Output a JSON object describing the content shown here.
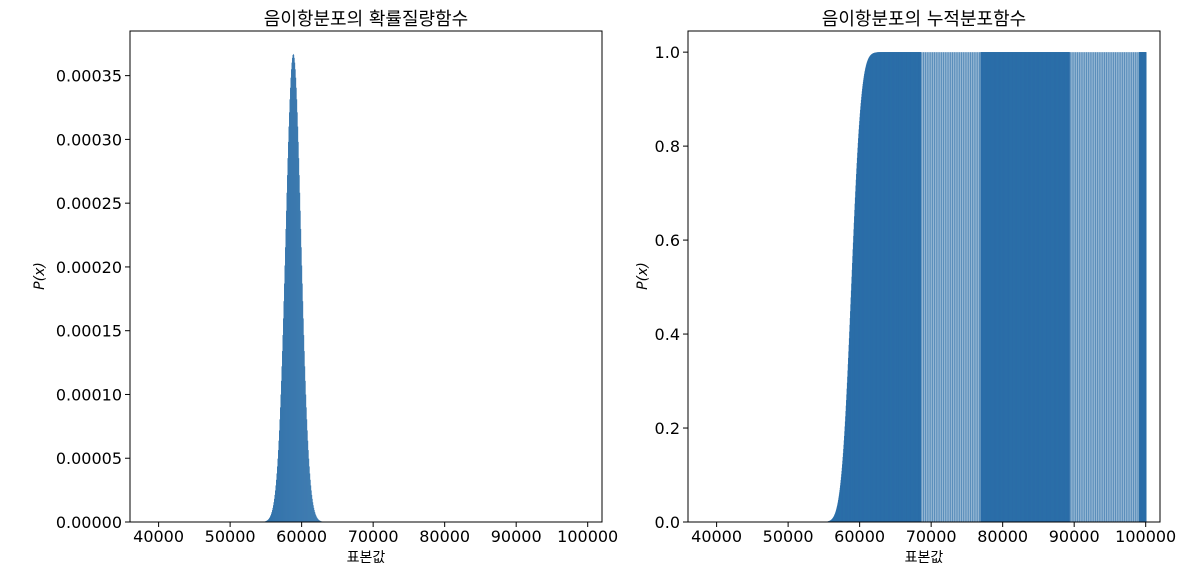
{
  "chart_data": [
    {
      "type": "bar",
      "title": "음이항분포의 확률질량함수",
      "xlabel": "표본값",
      "ylabel": "P(x)",
      "xlim": [
        36000,
        102000
      ],
      "ylim": [
        0,
        0.000385
      ],
      "xticks": [
        40000,
        50000,
        60000,
        70000,
        80000,
        90000,
        100000
      ],
      "xtick_labels": [
        "40000",
        "50000",
        "60000",
        "70000",
        "80000",
        "90000",
        "100000"
      ],
      "yticks": [
        0,
        5e-05,
        0.0001,
        0.00015,
        0.0002,
        0.00025,
        0.0003,
        0.00035
      ],
      "ytick_labels": [
        "0.00000",
        "0.00005",
        "0.00010",
        "0.00015",
        "0.00020",
        "0.00025",
        "0.00030",
        "0.00035"
      ],
      "distribution_shape": {
        "mean": 58800,
        "sd": 1085,
        "peak": 0.000367
      },
      "color": "#2b6ea8"
    },
    {
      "type": "bar",
      "title": "음이항분포의 누적분포함수",
      "xlabel": "표본값",
      "ylabel": "P(x)",
      "xlim": [
        36000,
        102000
      ],
      "ylim": [
        0,
        1.045
      ],
      "xticks": [
        40000,
        50000,
        60000,
        70000,
        80000,
        90000,
        100000
      ],
      "xtick_labels": [
        "40000",
        "50000",
        "60000",
        "70000",
        "80000",
        "90000",
        "100000"
      ],
      "yticks": [
        0,
        0.2,
        0.4,
        0.6,
        0.8,
        1.0
      ],
      "ytick_labels": [
        "0.0",
        "0.2",
        "0.4",
        "0.6",
        "0.8",
        "1.0"
      ],
      "distribution_shape": {
        "mean": 58800,
        "sd": 1085,
        "max": 1.0
      },
      "striped_ranges": [
        [
          68500,
          76800
        ],
        [
          89300,
          99000
        ]
      ],
      "color": "#2b6ea8"
    }
  ]
}
